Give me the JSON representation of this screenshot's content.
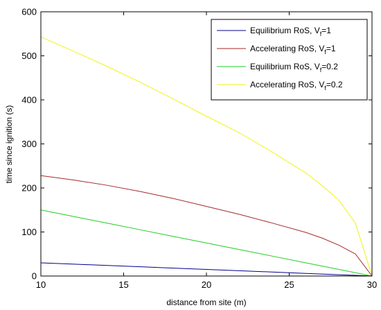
{
  "chart_data": {
    "type": "line",
    "xlabel": "distance from site (m)",
    "ylabel": "time since ignition (s)",
    "xlim": [
      10,
      30
    ],
    "ylim": [
      0,
      600
    ],
    "x_ticks": [
      "10",
      "15",
      "20",
      "25",
      "30"
    ],
    "y_ticks": [
      "0",
      "100",
      "200",
      "300",
      "400",
      "500",
      "600"
    ],
    "x_tick_values": [
      10,
      15,
      20,
      25,
      30
    ],
    "y_tick_values": [
      0,
      100,
      200,
      300,
      400,
      500,
      600
    ],
    "grid": false,
    "legend_position": "top-right",
    "series": [
      {
        "name": "Equilibrium RoS, V",
        "subscript": "f",
        "suffix": "=1",
        "color": "#00008b",
        "x": [
          10,
          12,
          14,
          16,
          18,
          20,
          22,
          24,
          26,
          28,
          29,
          30
        ],
        "y": [
          30,
          27,
          24,
          21,
          18,
          15,
          12,
          9,
          6,
          3,
          1.5,
          0
        ]
      },
      {
        "name": "Accelerating RoS, V",
        "subscript": "f",
        "suffix": "=1",
        "color": "#a52a2a",
        "x": [
          10,
          12,
          14,
          16,
          18,
          20,
          22,
          24,
          26,
          27,
          28,
          29,
          30
        ],
        "y": [
          228,
          218,
          206,
          192,
          176,
          158,
          140,
          120,
          99,
          86,
          70,
          50,
          0
        ]
      },
      {
        "name": "Equilibrium RoS, V",
        "subscript": "f",
        "suffix": "=0.2",
        "color": "#22cc22",
        "x": [
          10,
          12,
          14,
          16,
          18,
          20,
          22,
          24,
          26,
          28,
          29,
          30
        ],
        "y": [
          150,
          135,
          120,
          105,
          90,
          75,
          60,
          45,
          30,
          15,
          7.5,
          0
        ]
      },
      {
        "name": "Accelerating RoS, V",
        "subscript": "f",
        "suffix": "=0.2",
        "color": "#f2f216",
        "x": [
          10,
          12,
          14,
          16,
          18,
          20,
          22,
          24,
          26,
          27,
          28,
          29,
          30
        ],
        "y": [
          543,
          510,
          476,
          440,
          402,
          363,
          325,
          281,
          234,
          205,
          172,
          120,
          0
        ]
      }
    ]
  }
}
